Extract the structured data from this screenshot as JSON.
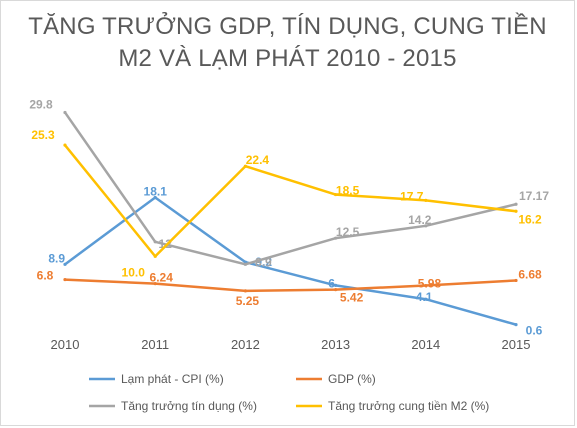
{
  "chart_data": {
    "type": "line",
    "title_line1": "TĂNG TRƯỞNG GDP, TÍN DỤNG, CUNG TIỀN",
    "title_line2": "M2 VÀ LẠM PHÁT 2010 - 2015",
    "x": [
      "2010",
      "2011",
      "2012",
      "2013",
      "2014",
      "2015"
    ],
    "ylim": [
      0,
      30
    ],
    "grid": false,
    "legend_position": "bottom",
    "series": [
      {
        "name": "Lạm phát - CPI (%)",
        "color": "#5b9bd5",
        "values": [
          8.9,
          18.1,
          9.2,
          6,
          4.1,
          0.6
        ],
        "labels": [
          "8.9",
          "18.1",
          "9.2",
          "6",
          "4.1",
          "0.6"
        ]
      },
      {
        "name": "GDP (%)",
        "color": "#ed7d31",
        "values": [
          6.8,
          6.24,
          5.25,
          5.42,
          5.98,
          6.68
        ],
        "labels": [
          "6.8",
          "6.24",
          "5.25",
          "5.42",
          "5.98",
          "6.68"
        ]
      },
      {
        "name": "Tăng trưởng tín dụng (%)",
        "color": "#a5a5a5",
        "values": [
          29.8,
          12,
          8.9,
          12.5,
          14.2,
          17.17
        ],
        "labels": [
          "29.8",
          "12",
          "8.9",
          "12.5",
          "14.2",
          "17.17"
        ]
      },
      {
        "name": "Tăng trưởng cung tiền M2 (%)",
        "color": "#ffc000",
        "values": [
          25.3,
          10.0,
          22.4,
          18.5,
          17.7,
          16.2
        ],
        "labels": [
          "25.3",
          "10.0",
          "22.4",
          "18.5",
          "17.7",
          "16.2"
        ]
      }
    ]
  }
}
